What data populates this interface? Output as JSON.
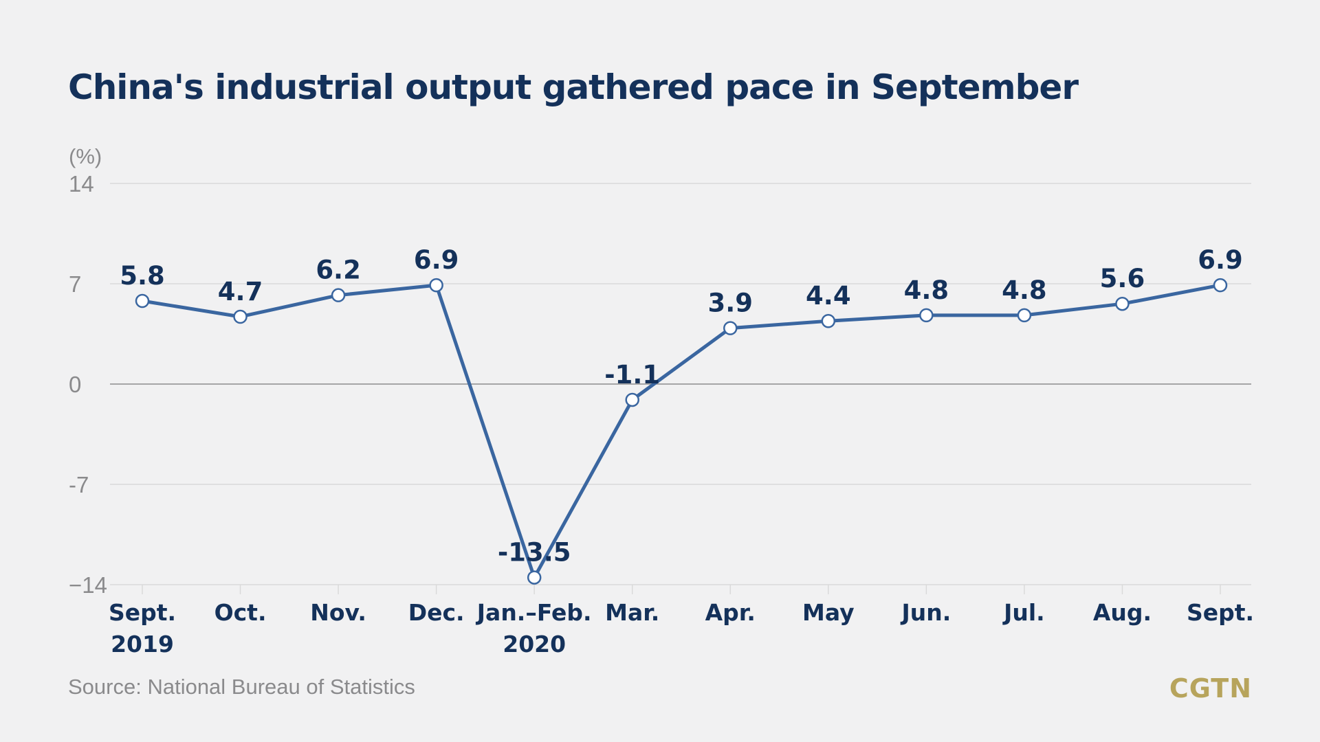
{
  "chart_data": {
    "type": "line",
    "title": "China's industrial output gathered pace in September",
    "ylabel": "(%)",
    "ylim": [
      -14,
      14
    ],
    "yticks": [
      "14",
      "7",
      "0",
      "-7",
      "−14"
    ],
    "ytick_values": [
      14,
      7,
      0,
      -7,
      -14
    ],
    "categories": [
      [
        "Sept.",
        "2019"
      ],
      [
        "Oct."
      ],
      [
        "Nov."
      ],
      [
        "Dec."
      ],
      [
        "Jan.–Feb.",
        "2020"
      ],
      [
        "Mar."
      ],
      [
        "Apr."
      ],
      [
        "May"
      ],
      [
        "Jun."
      ],
      [
        "Jul."
      ],
      [
        "Aug."
      ],
      [
        "Sept."
      ]
    ],
    "series": [
      {
        "values": [
          5.8,
          4.7,
          6.2,
          6.9,
          -13.5,
          -1.1,
          3.9,
          4.4,
          4.8,
          4.8,
          5.6,
          6.9
        ],
        "labels": [
          "5.8",
          "4.7",
          "6.2",
          "6.9",
          "-13.5",
          "-1.1",
          "3.9",
          "4.4",
          "4.8",
          "4.8",
          "5.6",
          "6.9"
        ]
      }
    ],
    "grid": true,
    "legend": "none",
    "colors": {
      "line": "#3a66a0",
      "marker_fill": "#ffffff",
      "grid": "#d9d9d9",
      "zero_line": "#8c8c8c",
      "label": "#14315a"
    }
  },
  "footer": {
    "source": "Source: National Bureau of Statistics",
    "brand": "CGTN"
  }
}
